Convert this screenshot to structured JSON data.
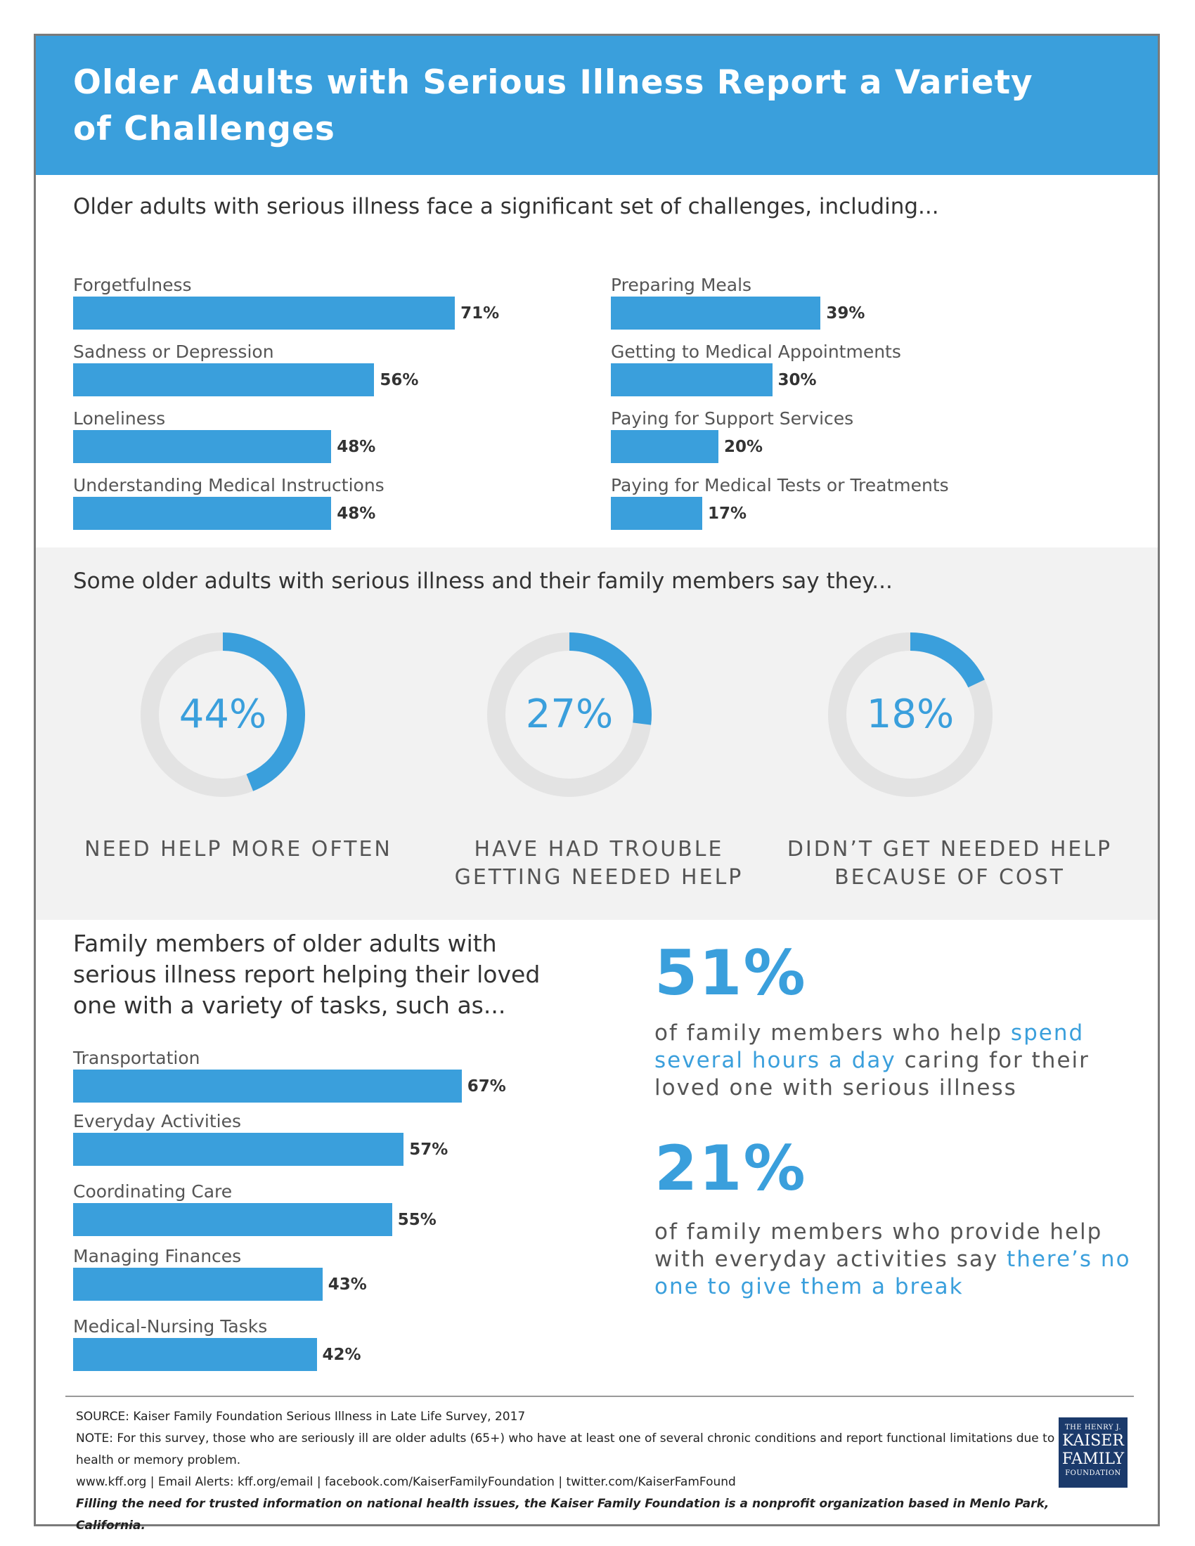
{
  "title": "Older Adults with Serious Illness Report a Variety of Challenges",
  "challenges": {
    "intro": "Older adults with serious illness face a significant set of challenges, including...",
    "chart_data": {
      "type": "bar",
      "categories": [
        "Forgetfulness",
        "Sadness or Depression",
        "Loneliness",
        "Understanding Medical Instructions",
        "Preparing Meals",
        "Getting to Medical Appointments",
        "Paying for Support Services",
        "Paying for Medical Tests or Treatments"
      ],
      "values": [
        71,
        56,
        48,
        48,
        39,
        30,
        20,
        17
      ],
      "value_labels": [
        "71%",
        "56%",
        "48%",
        "48%",
        "39%",
        "30%",
        "20%",
        "17%"
      ],
      "color": "#3a9fdc"
    }
  },
  "needs": {
    "intro": "Some older adults with serious illness and their family members say they...",
    "chart_data": {
      "type": "pie",
      "categories": [
        "NEED HELP MORE OFTEN",
        "HAVE HAD TROUBLE GETTING NEEDED HELP",
        "DIDN’T GET NEEDED HELP BECAUSE OF COST"
      ],
      "values": [
        44,
        27,
        18
      ],
      "value_labels": [
        "44%",
        "27%",
        "18%"
      ],
      "caption_lines": [
        [
          "NEED HELP MORE OFTEN"
        ],
        [
          "HAVE HAD TROUBLE",
          "GETTING NEEDED HELP"
        ],
        [
          "DIDN’T GET NEEDED HELP",
          "BECAUSE OF COST"
        ]
      ],
      "color": "#3a9fdc",
      "track_color": "#e3e3e3"
    }
  },
  "family": {
    "intro": "Family members of older adults with serious illness report helping their loved one with a variety of tasks, such as...",
    "chart_data": {
      "type": "bar",
      "categories": [
        "Transportation",
        "Everyday Activities",
        "Coordinating Care",
        "Managing Finances",
        "Medical-Nursing Tasks"
      ],
      "values": [
        67,
        57,
        55,
        43,
        42
      ],
      "value_labels": [
        "67%",
        "57%",
        "55%",
        "43%",
        "42%"
      ],
      "color": "#3a9fdc"
    }
  },
  "stats": [
    {
      "value": "51%",
      "t1": "of family members who help ",
      "h1": "spend several hours a day",
      "t2": " caring for their loved one with serious illness",
      "h2": ""
    },
    {
      "value": "21%",
      "t1": "of family members who provide help with everyday activities say ",
      "h1": "there’s no one to give them a break",
      "t2": "",
      "h2": ""
    }
  ],
  "footer": {
    "source": "SOURCE: Kaiser Family Foundation Serious Illness in Late Life Survey, 2017",
    "note": "NOTE: For this survey, those who are seriously ill are older adults (65+) who have at least one of several chronic conditions and report functional limitations due to a health or memory problem.",
    "links": "www.kff.org | Email Alerts: kff.org/email | facebook.com/KaiserFamilyFoundation | twitter.com/KaiserFamFound",
    "tagline": "Filling the need for trusted information on national health issues, the Kaiser Family Foundation is a nonprofit organization based in Menlo Park, California."
  },
  "logo": {
    "line1": "THE HENRY J.",
    "line2a": "KAISER",
    "line2b": "FAMILY",
    "line3": "FOUNDATION"
  }
}
